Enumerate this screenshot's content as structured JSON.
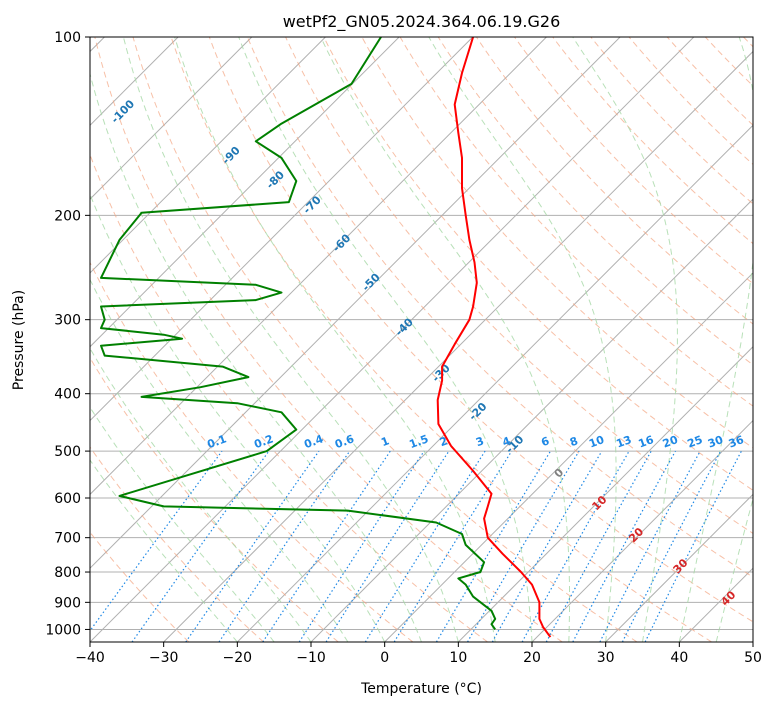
{
  "chart_data": {
    "type": "line",
    "title": "wetPf2_GN05.2024.364.06.19.G26",
    "xlabel": "Temperature (°C)",
    "ylabel": "Pressure (hPa)",
    "xlim": [
      -40,
      50
    ],
    "ylim": [
      1050,
      100
    ],
    "y_scale": "log",
    "grid": true,
    "x_ticks": [
      -40,
      -30,
      -20,
      -10,
      0,
      10,
      20,
      30,
      40,
      50
    ],
    "y_ticks": [
      100,
      200,
      300,
      400,
      500,
      600,
      700,
      800,
      900,
      1000
    ],
    "colors": {
      "temperature": "#ff0000",
      "dewpoint": "#008000",
      "isotherm": "#b0b0b0",
      "dry_adiabat": "#f4a582",
      "moist_adiabat": "#a6d8a6",
      "mixing_ratio": "#1e88e5",
      "isotherm_label_neg": "#1f77b4",
      "isotherm_label_zero": "#808080",
      "isotherm_label_pos": "#d62728"
    },
    "isotherm_labels": [
      {
        "value": "-100",
        "at": [
          -35.2,
          135
        ],
        "color": "neg"
      },
      {
        "value": "-90",
        "at": [
          -20.5,
          160
        ],
        "color": "neg"
      },
      {
        "value": "-80",
        "at": [
          -14.5,
          176
        ],
        "color": "neg"
      },
      {
        "value": "-70",
        "at": [
          -9.5,
          194
        ],
        "color": "neg"
      },
      {
        "value": "-60",
        "at": [
          -5.5,
          225
        ],
        "color": "neg"
      },
      {
        "value": "-50",
        "at": [
          -1.5,
          262
        ],
        "color": "neg"
      },
      {
        "value": "-40",
        "at": [
          3,
          312
        ],
        "color": "neg"
      },
      {
        "value": "-30",
        "at": [
          8,
          373
        ],
        "color": "neg"
      },
      {
        "value": "-20",
        "at": [
          13,
          433
        ],
        "color": "neg"
      },
      {
        "value": "-10",
        "at": [
          18,
          492
        ],
        "color": "neg"
      },
      {
        "value": "0",
        "at": [
          24,
          550
        ],
        "color": "zero"
      },
      {
        "value": "10",
        "at": [
          29.5,
          618
        ],
        "color": "pos"
      },
      {
        "value": "20",
        "at": [
          34.5,
          700
        ],
        "color": "pos"
      },
      {
        "value": "30",
        "at": [
          40.5,
          790
        ],
        "color": "pos"
      },
      {
        "value": "40",
        "at": [
          47,
          895
        ],
        "color": "pos"
      }
    ],
    "mixing_ratio_labels": [
      "0.1",
      "0.2",
      "0.4",
      "0.6",
      "1",
      "1.5",
      "2",
      "3",
      "4",
      "6",
      "8",
      "10",
      "13",
      "16",
      "20",
      "25",
      "30",
      "36"
    ],
    "series": [
      {
        "name": "Temperature",
        "role": "temperature",
        "points": [
          [
            12.0,
            100
          ],
          [
            10.5,
            115
          ],
          [
            9.5,
            130
          ],
          [
            10.0,
            145
          ],
          [
            10.5,
            160
          ],
          [
            10.5,
            180
          ],
          [
            11.0,
            200
          ],
          [
            11.5,
            220
          ],
          [
            12.2,
            240
          ],
          [
            12.5,
            260
          ],
          [
            12.0,
            285
          ],
          [
            11.5,
            300
          ],
          [
            9.5,
            330
          ],
          [
            7.8,
            360
          ],
          [
            7.8,
            380
          ],
          [
            7.2,
            410
          ],
          [
            7.3,
            450
          ],
          [
            9.0,
            490
          ],
          [
            12.0,
            540
          ],
          [
            14.5,
            590
          ],
          [
            14.0,
            620
          ],
          [
            13.5,
            650
          ],
          [
            14.0,
            700
          ],
          [
            16.0,
            745
          ],
          [
            18.5,
            800
          ],
          [
            20.0,
            840
          ],
          [
            21.0,
            900
          ],
          [
            21.0,
            960
          ],
          [
            21.5,
            990
          ],
          [
            22.5,
            1030
          ]
        ]
      },
      {
        "name": "Dewpoint",
        "role": "dewpoint",
        "points": [
          [
            -0.5,
            100
          ],
          [
            -4.5,
            120
          ],
          [
            -14.0,
            140
          ],
          [
            -17.5,
            150
          ],
          [
            -14.0,
            160
          ],
          [
            -12.0,
            175
          ],
          [
            -13.0,
            190
          ],
          [
            -33.0,
            198
          ],
          [
            -36.0,
            220
          ],
          [
            -38.5,
            255
          ],
          [
            -17.5,
            262
          ],
          [
            -14.0,
            270
          ],
          [
            -17.5,
            278
          ],
          [
            -38.5,
            285
          ],
          [
            -38.0,
            300
          ],
          [
            -38.5,
            310
          ],
          [
            -30.0,
            318
          ],
          [
            -27.5,
            323
          ],
          [
            -38.5,
            332
          ],
          [
            -38.0,
            345
          ],
          [
            -22.0,
            360
          ],
          [
            -18.5,
            375
          ],
          [
            -25.0,
            390
          ],
          [
            -33.0,
            405
          ],
          [
            -20.0,
            415
          ],
          [
            -14.0,
            430
          ],
          [
            -12.0,
            460
          ],
          [
            -16.0,
            500
          ],
          [
            -36.0,
            595
          ],
          [
            -30.0,
            620
          ],
          [
            -5.0,
            630
          ],
          [
            7.0,
            660
          ],
          [
            10.5,
            690
          ],
          [
            11.0,
            720
          ],
          [
            13.5,
            770
          ],
          [
            13.0,
            800
          ],
          [
            10.0,
            820
          ],
          [
            11.0,
            840
          ],
          [
            12.0,
            880
          ],
          [
            14.5,
            930
          ],
          [
            15.0,
            960
          ],
          [
            14.5,
            980
          ],
          [
            15.0,
            1000
          ]
        ]
      }
    ]
  }
}
